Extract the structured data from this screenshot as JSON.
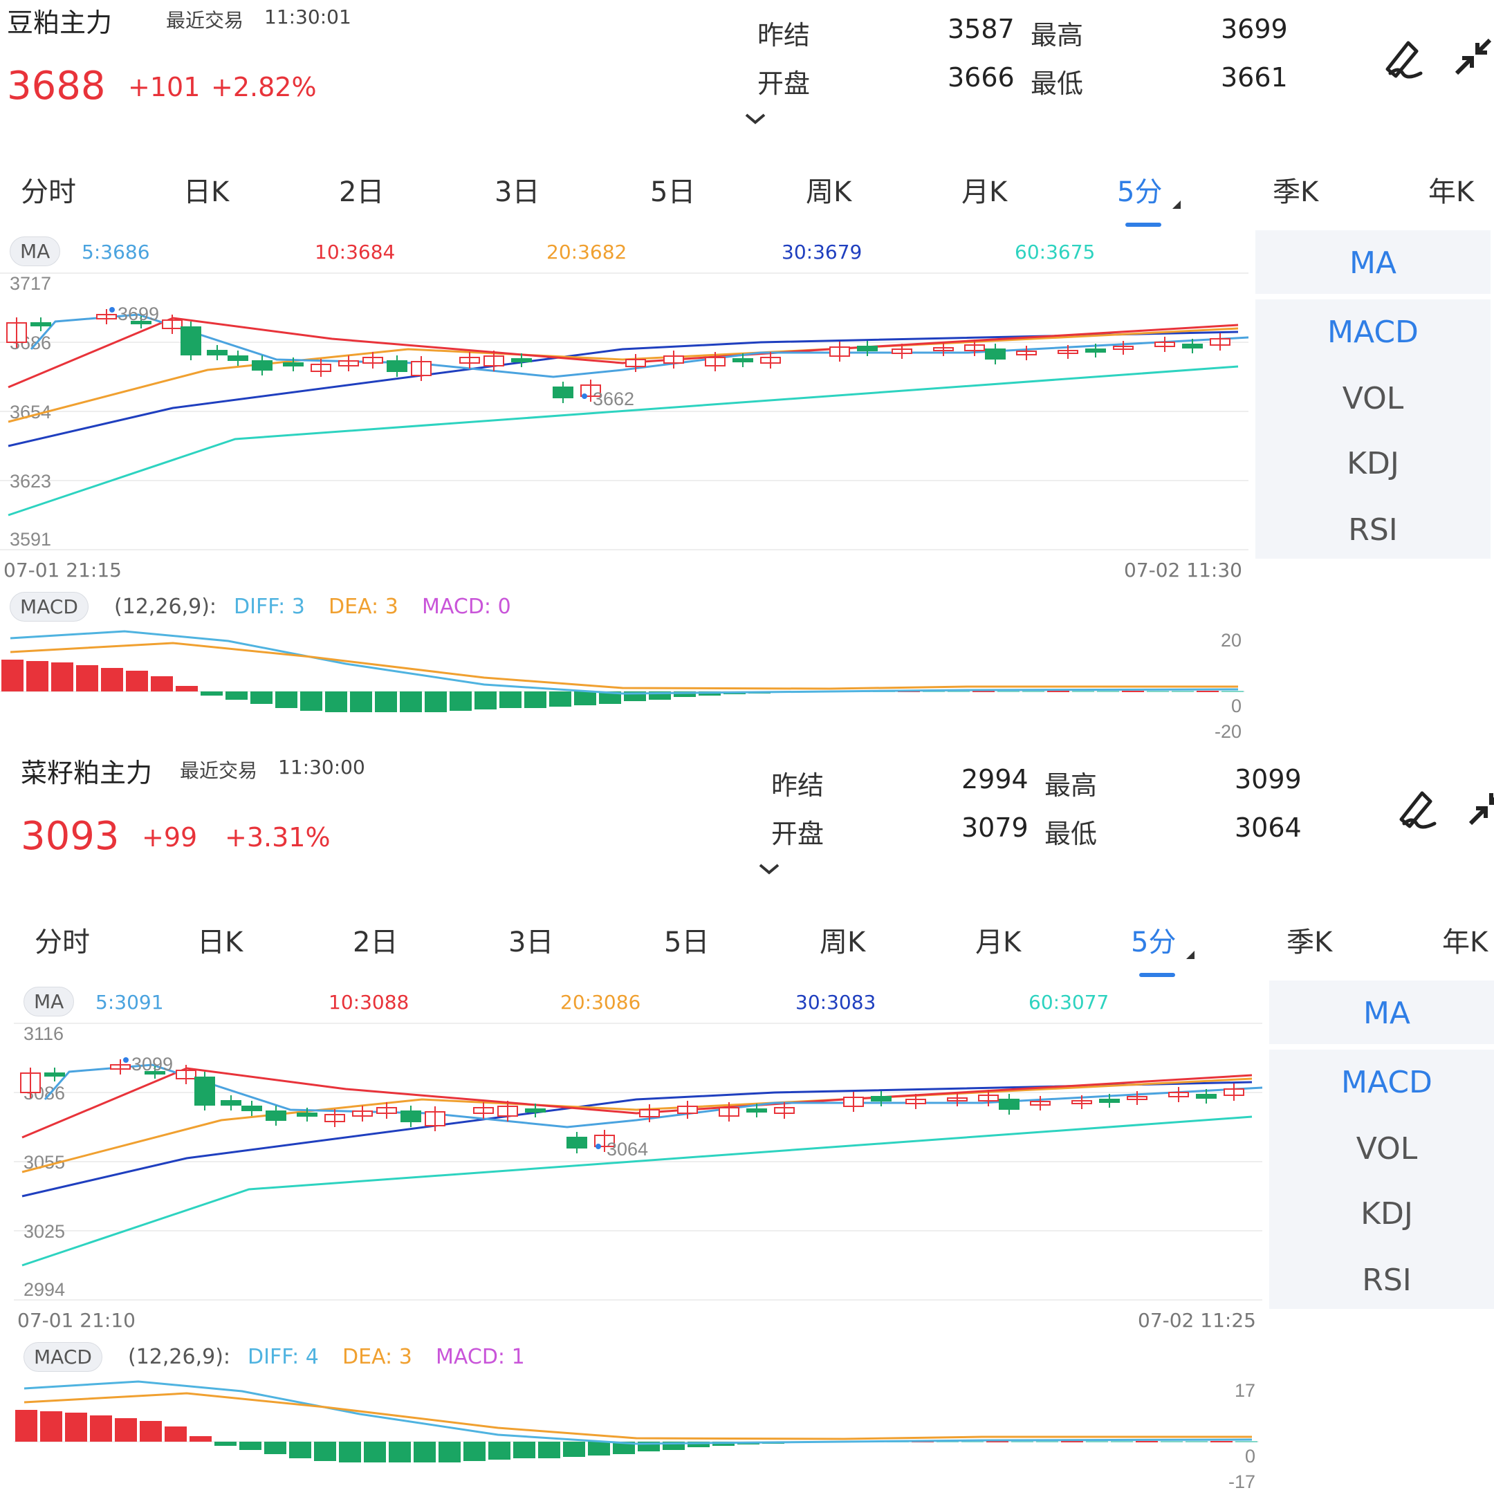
{
  "colors": {
    "up": "#e8333a",
    "down": "#1aa563",
    "accent": "#2f7ee6",
    "ma5": "#4aa3df",
    "ma10": "#e8333a",
    "ma20": "#f0a030",
    "ma30": "#1f3fbf",
    "ma60": "#2dd3c0",
    "diff": "#4fb3e0",
    "dea": "#f0a030",
    "macd": "#c955d9"
  },
  "tabs": [
    "分时",
    "日K",
    "2日",
    "3日",
    "5日",
    "周K",
    "月K",
    "5分",
    "季K",
    "年K"
  ],
  "active_tab": "5分",
  "indicators": [
    "MA",
    "MACD",
    "VOL",
    "KDJ",
    "RSI"
  ],
  "icons": {
    "draw": "pen-draw-icon",
    "collapse": "collapse-arrows-icon",
    "expand_stats": "chevron-down-icon"
  },
  "panels": [
    {
      "name": "豆粕主力",
      "last_trade_label": "最近交易",
      "last_trade_time": "11:30:01",
      "last": "3688",
      "change": "+101",
      "change_pct": "+2.82%",
      "stats": {
        "prev_settle_label": "昨结",
        "prev_settle": "3587",
        "open_label": "开盘",
        "open": "3666",
        "high_label": "最高",
        "high": "3699",
        "low_label": "最低",
        "low": "3661"
      },
      "ma_chip": "MA",
      "ma": {
        "ma5": "5:3686",
        "ma10": "10:3684",
        "ma20": "20:3682",
        "ma30": "30:3679",
        "ma60": "60:3675"
      },
      "price_axis": [
        "3717",
        "3686",
        "3654",
        "3623",
        "3591"
      ],
      "time_start": "07-01 21:15",
      "time_end": "07-02 11:30",
      "high_mark": "3699",
      "low_mark": "3662",
      "macd_chip": "MACD",
      "macd_params": "(12,26,9):",
      "diff": "DIFF: 3",
      "dea": "DEA: 3",
      "macd": "MACD: 0",
      "macd_axis": [
        "20",
        "0",
        "-20"
      ]
    },
    {
      "name": "菜籽粕主力",
      "last_trade_label": "最近交易",
      "last_trade_time": "11:30:00",
      "last": "3093",
      "change": "+99",
      "change_pct": "+3.31%",
      "stats": {
        "prev_settle_label": "昨结",
        "prev_settle": "2994",
        "open_label": "开盘",
        "open": "3079",
        "high_label": "最高",
        "high": "3099",
        "low_label": "最低",
        "low": "3064"
      },
      "ma_chip": "MA",
      "ma": {
        "ma5": "5:3091",
        "ma10": "10:3088",
        "ma20": "20:3086",
        "ma30": "30:3083",
        "ma60": "60:3077"
      },
      "price_axis": [
        "3116",
        "3086",
        "3055",
        "3025",
        "2994"
      ],
      "time_start": "07-01 21:10",
      "time_end": "07-02 11:25",
      "high_mark": "3099",
      "low_mark": "3064",
      "macd_chip": "MACD",
      "macd_params": "(12,26,9):",
      "diff": "DIFF: 4",
      "dea": "DEA: 3",
      "macd": "MACD: 1",
      "macd_axis": [
        "17",
        "0",
        "-17"
      ]
    }
  ]
}
